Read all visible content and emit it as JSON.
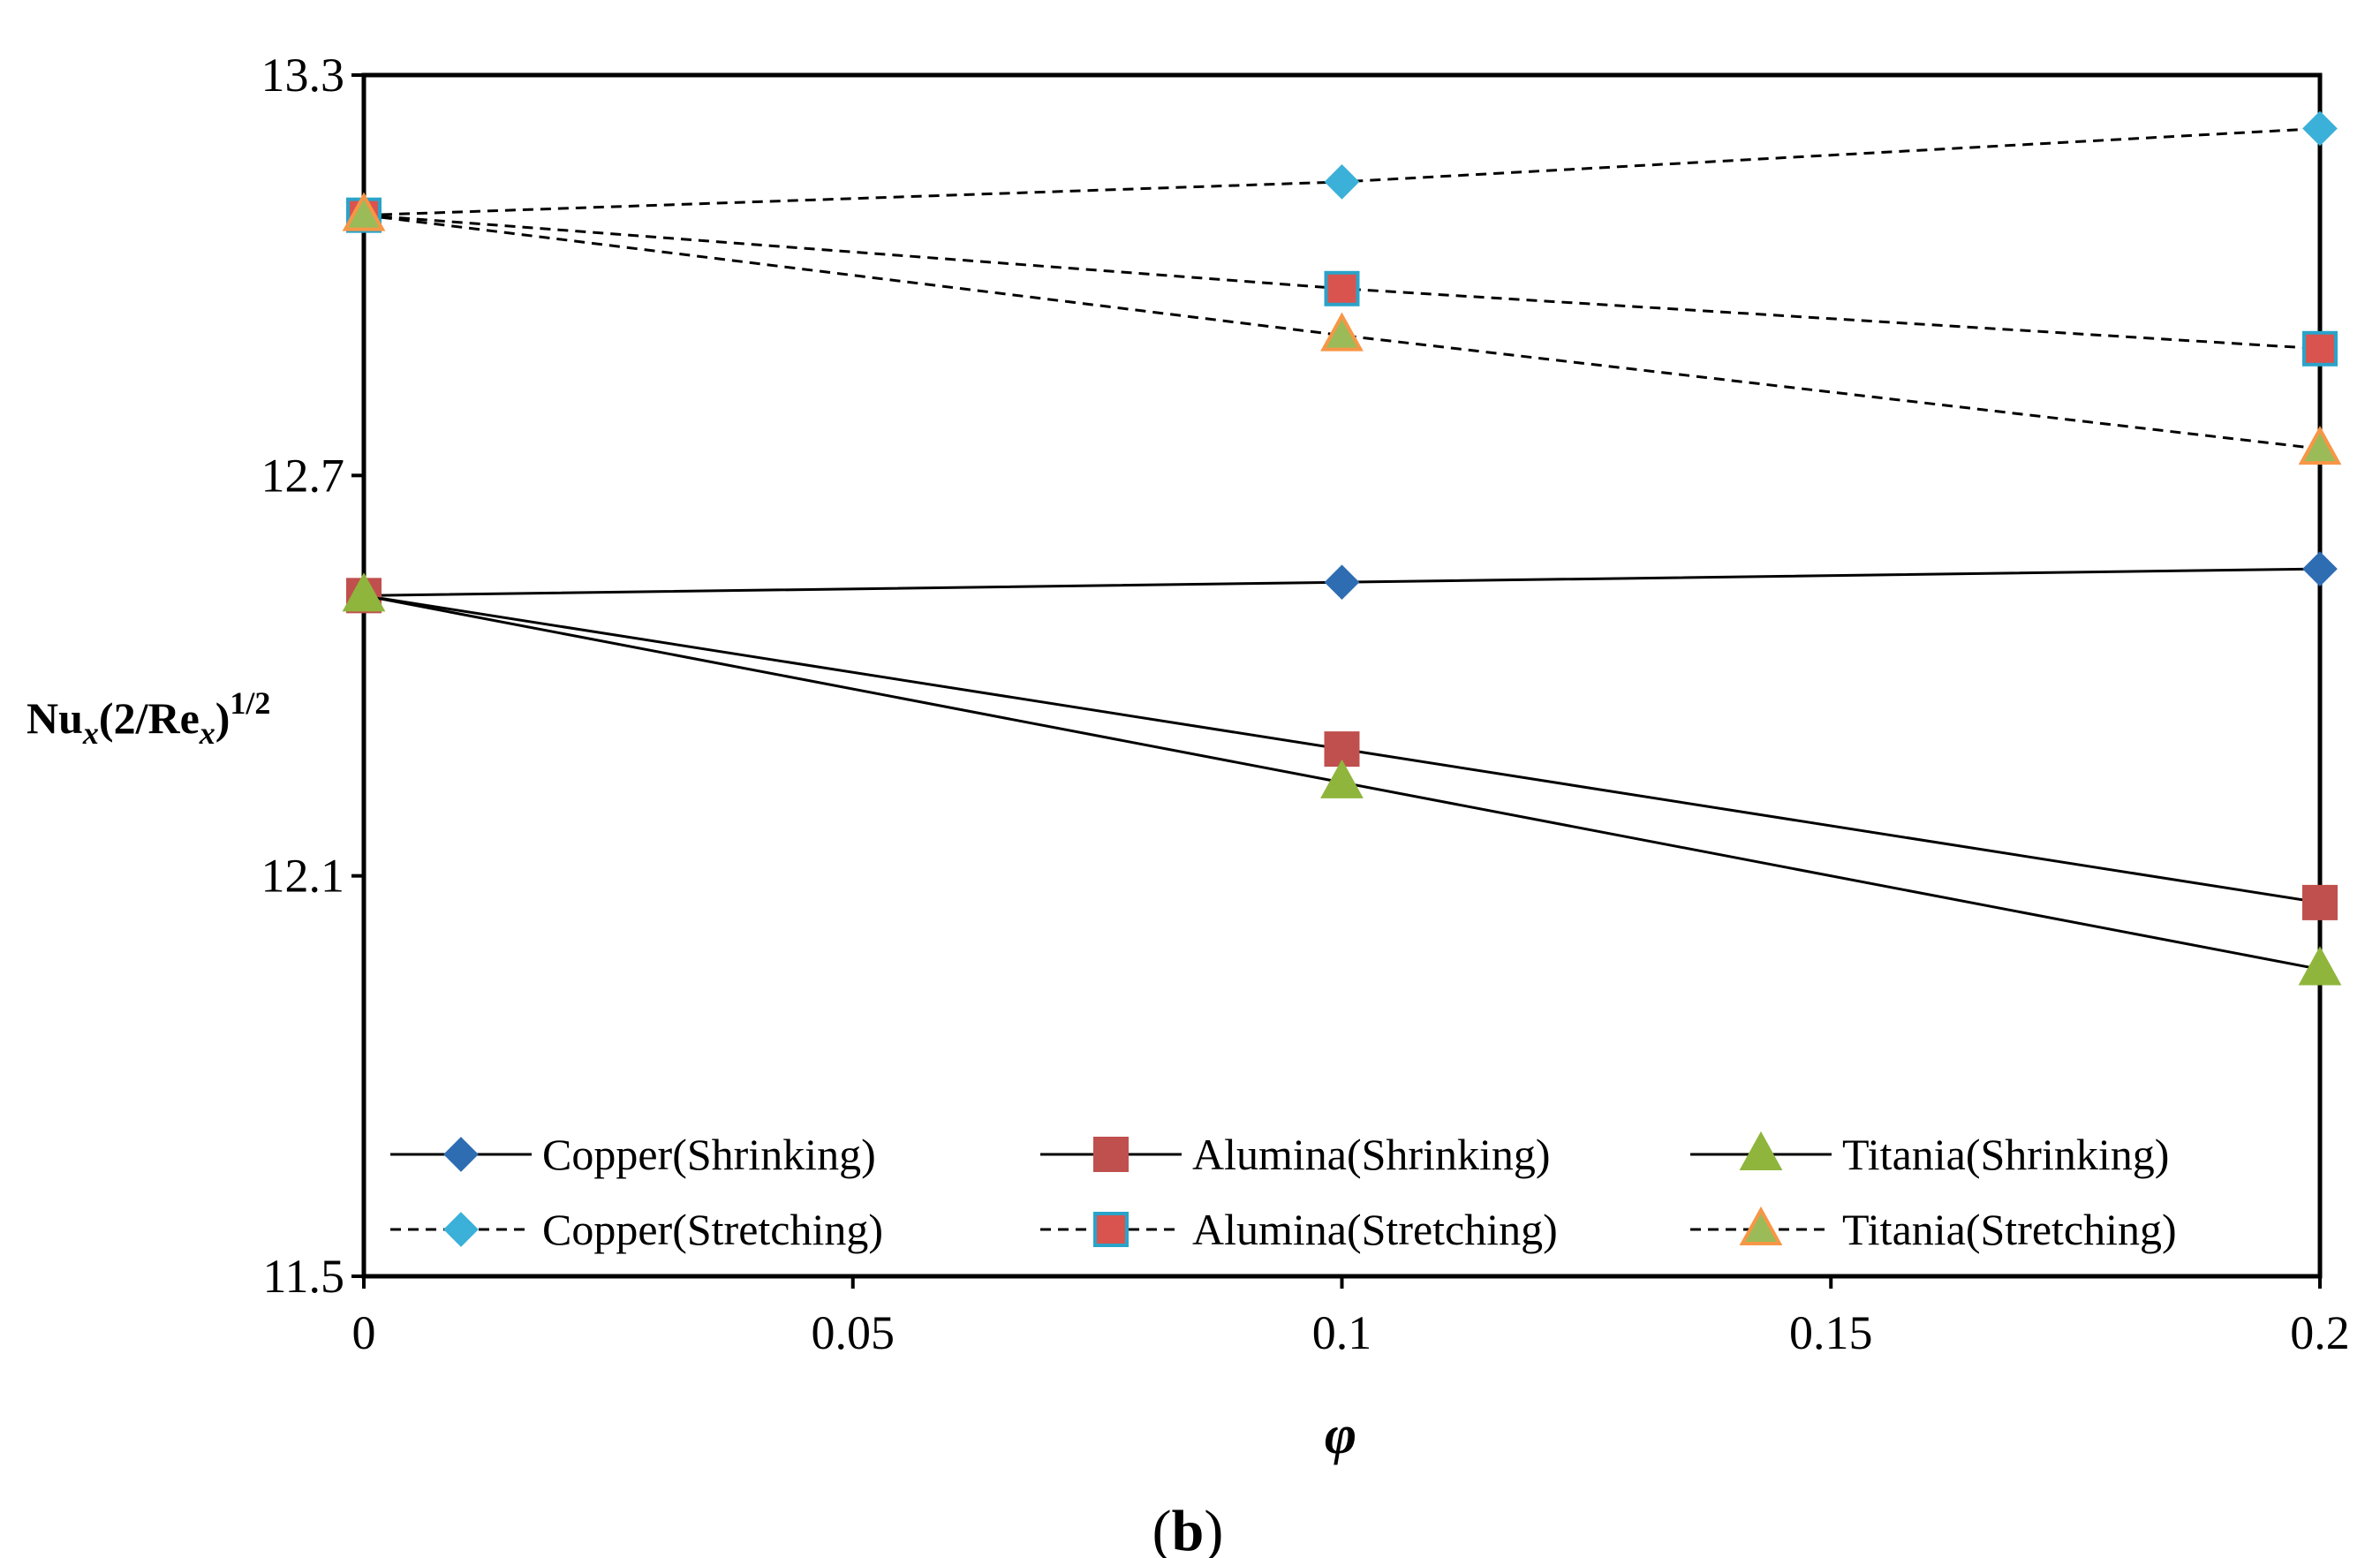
{
  "chart_data": {
    "type": "line",
    "caption": "(b)",
    "caption_letter": "b",
    "xlabel": "φ",
    "ylabel": "Nu_x(2/Re_x)^{1/2}",
    "ylabel_parts": {
      "a": "Nu",
      "b": "x",
      "c": "(2/Re",
      "d": "x",
      "e": ")",
      "f": "1/2"
    },
    "xlim": [
      0,
      0.2
    ],
    "ylim": [
      11.5,
      13.3
    ],
    "xticks": [
      "0",
      "0.05",
      "0.1",
      "0.15",
      "0.2"
    ],
    "yticks": [
      "11.5",
      "12.1",
      "12.7",
      "13.3"
    ],
    "x": [
      0,
      0.1,
      0.2
    ],
    "series": [
      {
        "name": "Copper(Shrinking)",
        "values": [
          12.52,
          12.54,
          12.56
        ],
        "style": "solid",
        "marker": "diamond",
        "fill": "#2e6db2",
        "edge": "#2e6db2"
      },
      {
        "name": "Alumina(Shrinking)",
        "values": [
          12.52,
          12.29,
          12.06
        ],
        "style": "solid",
        "marker": "square",
        "fill": "#c0504d",
        "edge": "#c0504d"
      },
      {
        "name": "Titania(Shrinking)",
        "values": [
          12.52,
          12.24,
          11.96
        ],
        "style": "solid",
        "marker": "triangle",
        "fill": "#8fb53c",
        "edge": "#8fb53c"
      },
      {
        "name": "Copper(Stretching)",
        "values": [
          13.09,
          13.14,
          13.22
        ],
        "style": "dashed",
        "marker": "diamond",
        "fill": "#3bb0d8",
        "edge": "#3bb0d8"
      },
      {
        "name": "Alumina(Stretching)",
        "values": [
          13.09,
          12.98,
          12.89
        ],
        "style": "dashed",
        "marker": "square",
        "fill": "#d9534f",
        "edge": "#2aa3c9"
      },
      {
        "name": "Titania(Stretching)",
        "values": [
          13.09,
          12.91,
          12.74
        ],
        "style": "dashed",
        "marker": "triangle",
        "fill": "#9bbb59",
        "edge": "#f79646"
      }
    ]
  }
}
